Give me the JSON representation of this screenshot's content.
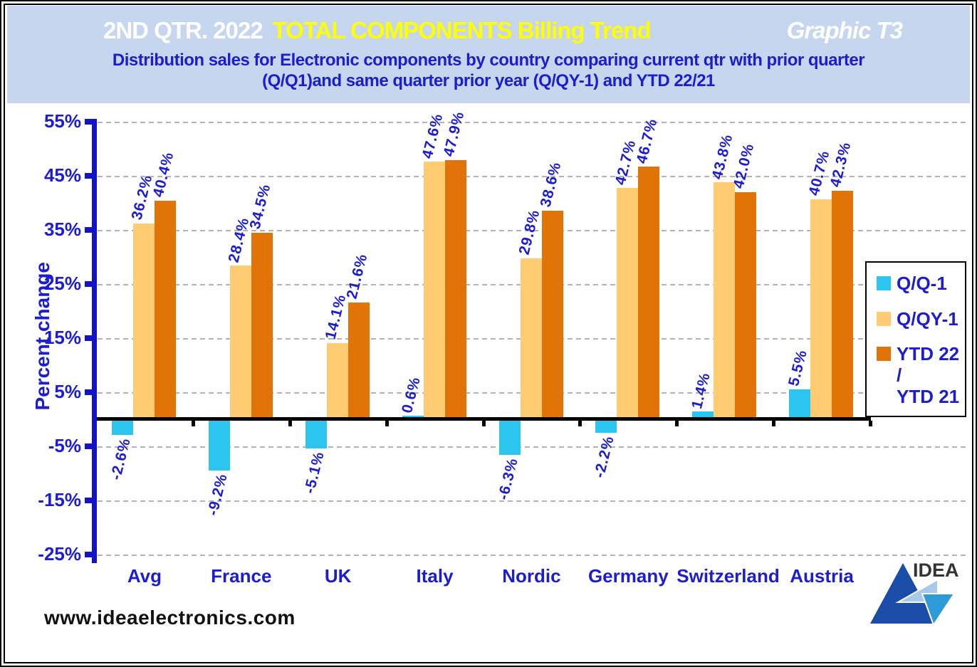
{
  "header": {
    "title_prefix": "2ND QTR. 2022",
    "title_highlight": "TOTAL COMPONENTS Billing Trend",
    "graphic_label": "Graphic T3",
    "subtitle_line1": "Distribution sales for Electronic components by country comparing current qtr with prior quarter",
    "subtitle_line2": "(Q/Q1)and same quarter prior year (Q/QY-1) and YTD 22/21"
  },
  "chart_data": {
    "type": "bar",
    "title": "2ND QTR. 2022 TOTAL COMPONENTS Billing Trend",
    "subtitle": "Distribution sales for Electronic components by country comparing current qtr with prior quarter (Q/Q1)and same quarter prior year (Q/QY-1) and YTD 22/21",
    "xlabel": "",
    "ylabel": "Percent change",
    "ylim": [
      -25,
      55
    ],
    "yticks": [
      55,
      45,
      35,
      25,
      15,
      5,
      -5,
      -15,
      -25
    ],
    "ytick_labels": [
      "55%",
      "45%",
      "35%",
      "25%",
      "15%",
      "5%",
      "-5%",
      "-15%",
      "-25%"
    ],
    "grid": "horizontal dashed",
    "legend_position": "right",
    "categories": [
      "Avg",
      "France",
      "UK",
      "Italy",
      "Nordic",
      "Germany",
      "Switzerland",
      "Austria"
    ],
    "series": [
      {
        "name": "Q/Q-1",
        "color": "#2BC5F0",
        "values": [
          -2.6,
          -9.2,
          -5.1,
          0.6,
          -6.3,
          -2.2,
          1.4,
          5.5
        ],
        "labels": [
          "-2.6%",
          "-9.2%",
          "-5.1%",
          "0.6%",
          "-6.3%",
          "-2.2%",
          "1.4%",
          "5.5%"
        ]
      },
      {
        "name": "Q/QY-1",
        "color": "#FFCC73",
        "values": [
          36.2,
          28.4,
          14.1,
          47.6,
          29.8,
          42.7,
          43.8,
          40.7
        ],
        "labels": [
          "36.2%",
          "28.4%",
          "14.1%",
          "47.6%",
          "29.8%",
          "42.7%",
          "43.8%",
          "40.7%"
        ]
      },
      {
        "name": "YTD 22 / YTD 21",
        "color": "#E27306",
        "values": [
          40.4,
          34.5,
          21.6,
          47.9,
          38.6,
          46.7,
          42.0,
          42.3
        ],
        "labels": [
          "40.4%",
          "34.5%",
          "21.6%",
          "47.9%",
          "38.6%",
          "46.7%",
          "42.0%",
          "42.3%"
        ]
      }
    ]
  },
  "legend": {
    "items": [
      {
        "label_lines": [
          "Q/Q-1"
        ],
        "color": "#2BC5F0"
      },
      {
        "label_lines": [
          "Q/QY-1"
        ],
        "color": "#FFCC73"
      },
      {
        "label_lines": [
          "YTD 22 /",
          "YTD 21"
        ],
        "color": "#E27306"
      }
    ]
  },
  "footer": {
    "website": "www.ideaelectronics.com",
    "logo_text": "IDEA"
  },
  "colors": {
    "header_bg": "#C5D6EE",
    "title_white": "#FFFFFF",
    "title_yellow": "#FFFF00",
    "blue_text": "#1C1CD0",
    "axis_blue": "#1212CC",
    "cyan_bar": "#2BC5F0",
    "light_orange_bar": "#FFCC73",
    "dark_orange_bar": "#E27306",
    "gridline": "#9A9A9A",
    "baseline": "#000000",
    "logo_dark_blue": "#1A4DA8",
    "logo_light_blue": "#A9C9EA",
    "logo_mid_blue": "#2E9BD6"
  }
}
